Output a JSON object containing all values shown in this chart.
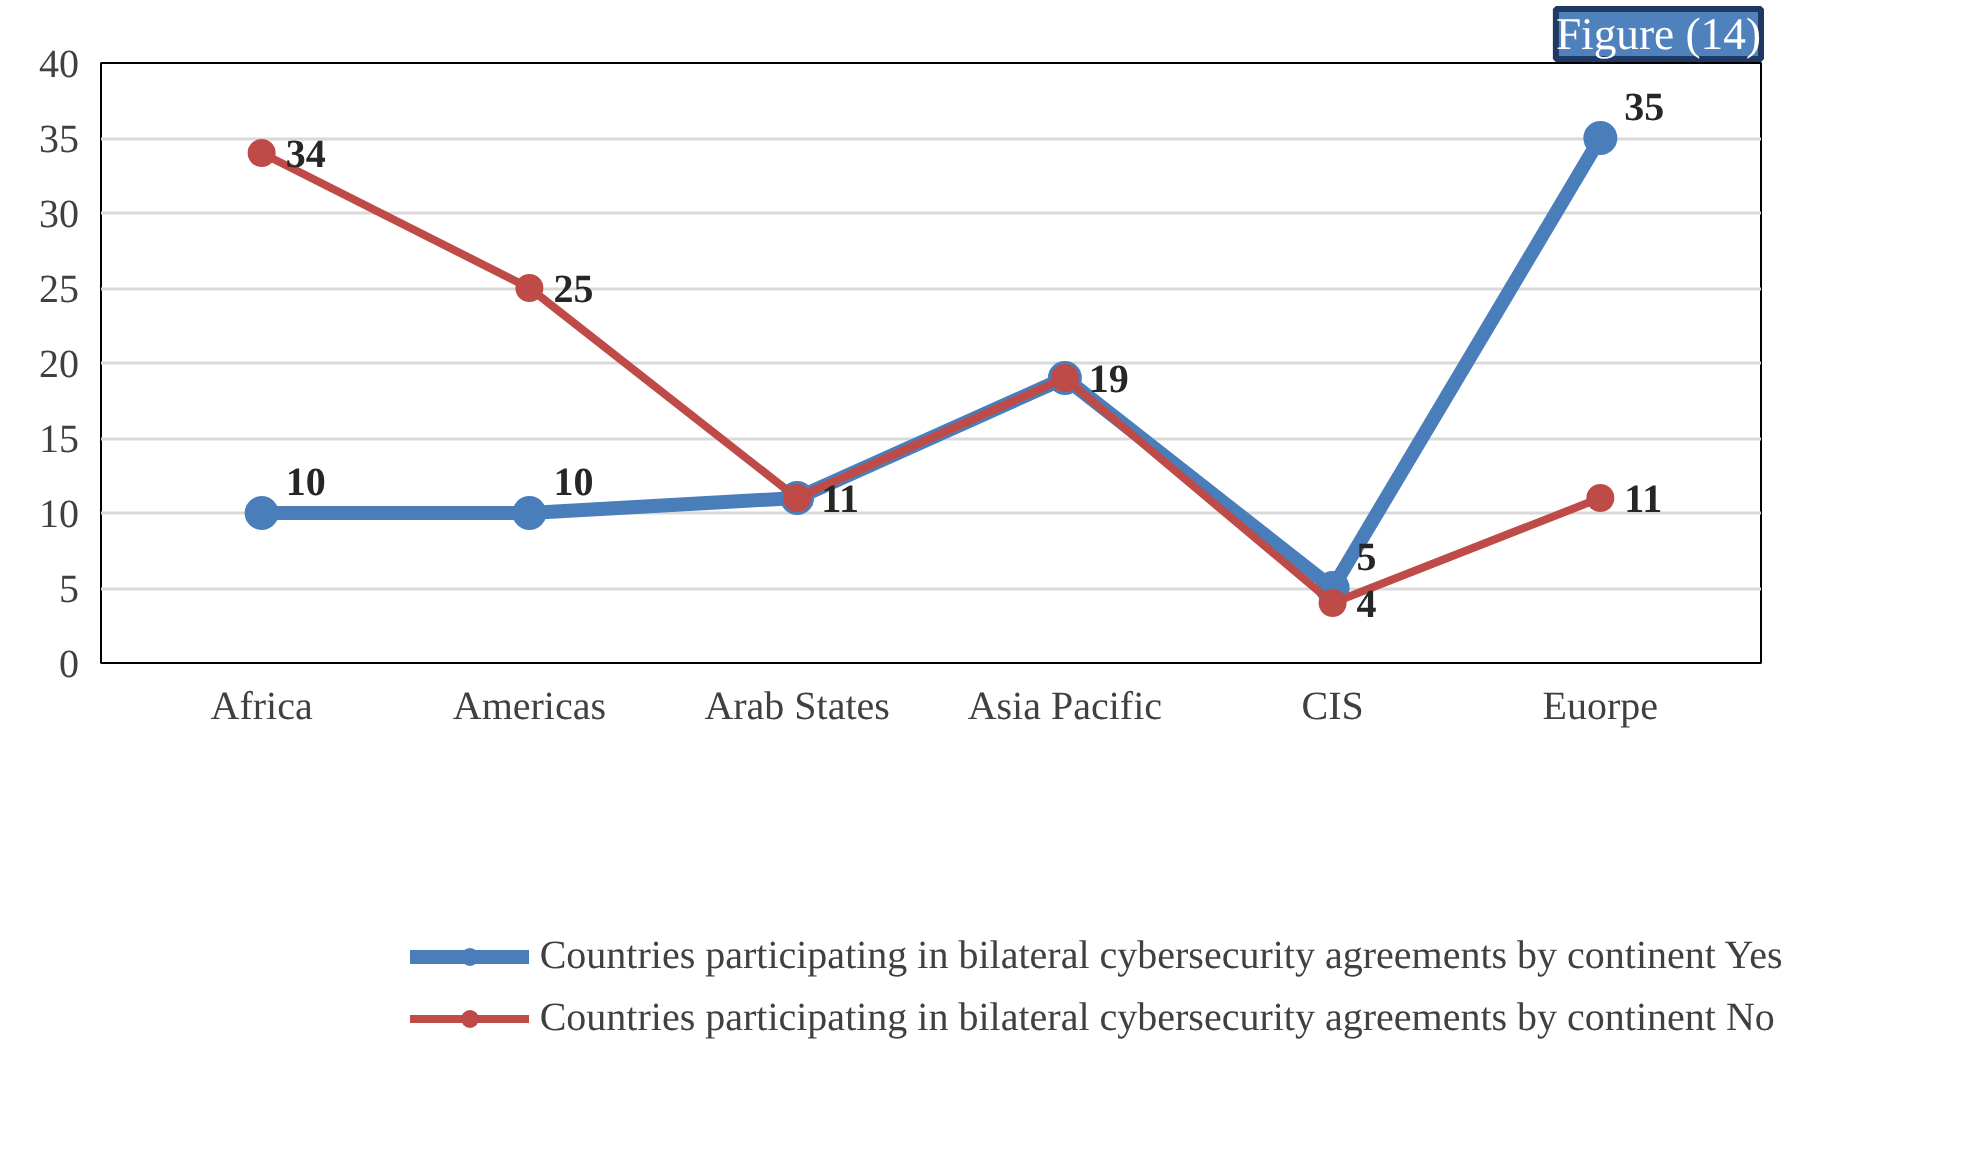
{
  "chart_data": {
    "type": "line",
    "categories": [
      "Africa",
      "Americas",
      "Arab States",
      "Asia Pacific",
      "CIS",
      "Euorpe"
    ],
    "series": [
      {
        "name": "Countries participating in bilateral cybersecurity agreements by continent Yes",
        "color": "#4a7ebb",
        "values": [
          10,
          10,
          11,
          19,
          5,
          35
        ],
        "value_labels": [
          "10",
          "10",
          null,
          null,
          "5",
          "35"
        ]
      },
      {
        "name": "Countries participating in bilateral cybersecurity agreements by continent No",
        "color": "#be4b48",
        "values": [
          34,
          25,
          11,
          19,
          4,
          11
        ],
        "value_labels": [
          "34",
          "25",
          "11",
          "19",
          "4",
          "11"
        ]
      }
    ],
    "ylim": [
      0,
      40
    ],
    "yticks": [
      0,
      5,
      10,
      15,
      20,
      25,
      30,
      35,
      40
    ],
    "grid": "y",
    "legend": "bottom",
    "marker": "circle",
    "line_style": "solid",
    "annotations": [
      "Figure (14)"
    ]
  }
}
